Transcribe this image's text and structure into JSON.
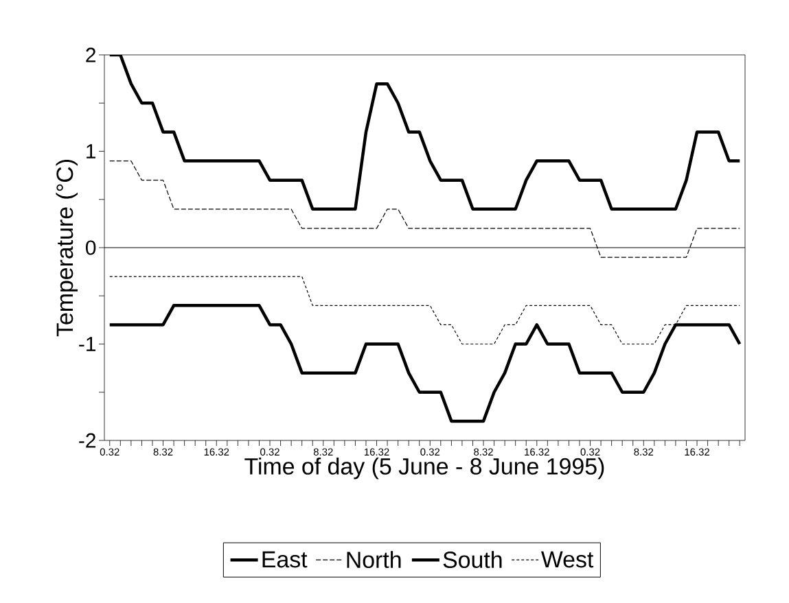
{
  "chart_data": {
    "type": "line",
    "xlabel": "Time of day (5 June - 8 June 1995)",
    "ylabel": "Temperature (°C)",
    "categories": [
      "0.32",
      null,
      null,
      null,
      null,
      "8.32",
      null,
      null,
      null,
      null,
      "16.32",
      null,
      null,
      null,
      null,
      "0.32",
      null,
      null,
      null,
      null,
      "8.32",
      null,
      null,
      null,
      null,
      "16.32",
      null,
      null,
      null,
      null,
      "0.32",
      null,
      null,
      null,
      null,
      "8.32",
      null,
      null,
      null,
      null,
      "16.32",
      null,
      null,
      null,
      null,
      "0.32",
      null,
      null,
      null,
      null,
      "8.32",
      null,
      null,
      null,
      null,
      "16.32",
      null,
      null,
      null,
      null
    ],
    "series": [
      {
        "name": "East",
        "color": "#000000",
        "line_style": "solid",
        "values": [
          2,
          2,
          1.7,
          1.5,
          1.5,
          1.2,
          1.2,
          0.9,
          0.9,
          0.9,
          0.9,
          0.9,
          0.9,
          0.9,
          0.9,
          0.7,
          0.7,
          0.7,
          0.7,
          0.4,
          0.4,
          0.4,
          0.4,
          0.4,
          1.2,
          1.7,
          1.7,
          1.5,
          1.2,
          1.2,
          0.9,
          0.7,
          0.7,
          0.7,
          0.4,
          0.4,
          0.4,
          0.4,
          0.4,
          0.7,
          0.9,
          0.9,
          0.9,
          0.9,
          0.7,
          0.7,
          0.7,
          0.4,
          0.4,
          0.4,
          0.4,
          0.4,
          0.4,
          0.4,
          0.7,
          1.2,
          1.2,
          1.2,
          0.9,
          0.9
        ]
      },
      {
        "name": "North",
        "color": "#000000",
        "line_style": "dashed",
        "values": [
          0.9,
          0.9,
          0.9,
          0.7,
          0.7,
          0.7,
          0.4,
          0.4,
          0.4,
          0.4,
          0.4,
          0.4,
          0.4,
          0.4,
          0.4,
          0.4,
          0.4,
          0.4,
          0.2,
          0.2,
          0.2,
          0.2,
          0.2,
          0.2,
          0.2,
          0.2,
          0.4,
          0.4,
          0.2,
          0.2,
          0.2,
          0.2,
          0.2,
          0.2,
          0.2,
          0.2,
          0.2,
          0.2,
          0.2,
          0.2,
          0.2,
          0.2,
          0.2,
          0.2,
          0.2,
          0.2,
          -0.1,
          -0.1,
          -0.1,
          -0.1,
          -0.1,
          -0.1,
          -0.1,
          -0.1,
          -0.1,
          0.2,
          0.2,
          0.2,
          0.2,
          0.2
        ]
      },
      {
        "name": "South",
        "color": "#000000",
        "line_style": "solid",
        "values": [
          -0.8,
          -0.8,
          -0.8,
          -0.8,
          -0.8,
          -0.8,
          -0.6,
          -0.6,
          -0.6,
          -0.6,
          -0.6,
          -0.6,
          -0.6,
          -0.6,
          -0.6,
          -0.8,
          -0.8,
          -1.0,
          -1.3,
          -1.3,
          -1.3,
          -1.3,
          -1.3,
          -1.3,
          -1.0,
          -1.0,
          -1.0,
          -1.0,
          -1.3,
          -1.5,
          -1.5,
          -1.5,
          -1.8,
          -1.8,
          -1.8,
          -1.8,
          -1.5,
          -1.3,
          -1.0,
          -1.0,
          -0.8,
          -1.0,
          -1.0,
          -1.0,
          -1.3,
          -1.3,
          -1.3,
          -1.3,
          -1.5,
          -1.5,
          -1.5,
          -1.3,
          -1.0,
          -0.8,
          -0.8,
          -0.8,
          -0.8,
          -0.8,
          -0.8,
          -1.0
        ]
      },
      {
        "name": "West",
        "color": "#000000",
        "line_style": "dotted",
        "values": [
          -0.3,
          -0.3,
          -0.3,
          -0.3,
          -0.3,
          -0.3,
          -0.3,
          -0.3,
          -0.3,
          -0.3,
          -0.3,
          -0.3,
          -0.3,
          -0.3,
          -0.3,
          -0.3,
          -0.3,
          -0.3,
          -0.3,
          -0.6,
          -0.6,
          -0.6,
          -0.6,
          -0.6,
          -0.6,
          -0.6,
          -0.6,
          -0.6,
          -0.6,
          -0.6,
          -0.6,
          -0.8,
          -0.8,
          -1.0,
          -1.0,
          -1.0,
          -1.0,
          -0.8,
          -0.8,
          -0.6,
          -0.6,
          -0.6,
          -0.6,
          -0.6,
          -0.6,
          -0.6,
          -0.8,
          -0.8,
          -1.0,
          -1.0,
          -1.0,
          -1.0,
          -0.8,
          -0.8,
          -0.6,
          -0.6,
          -0.6,
          -0.6,
          -0.6,
          -0.6
        ]
      }
    ],
    "ylim": [
      -2,
      2
    ],
    "yticks": [
      -2,
      {
        "value": -1.5,
        "label": null
      },
      -1,
      {
        "value": -0.5,
        "label": null
      },
      0,
      {
        "value": 0.5,
        "label": null
      },
      1,
      {
        "value": 1.5,
        "label": null
      },
      2
    ],
    "ref_lines": [
      {
        "axis": "y",
        "value": 0
      }
    ],
    "legend": "bottom",
    "marker": "none"
  }
}
